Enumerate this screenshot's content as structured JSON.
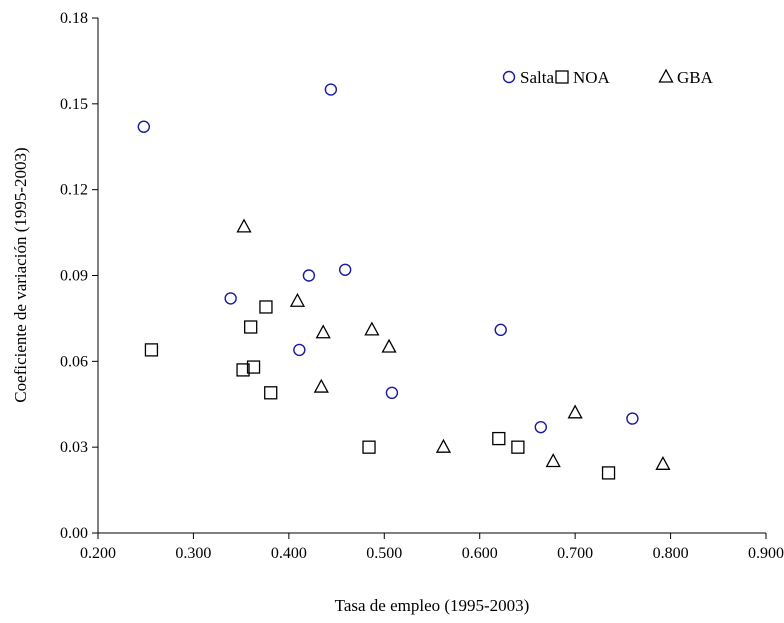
{
  "chart_data": {
    "type": "scatter",
    "title": "",
    "xlabel": "Tasa de empleo (1995-2003)",
    "ylabel": "Coeficiente de variación (1995-2003)",
    "xlim": [
      0.2,
      0.9
    ],
    "ylim": [
      0.0,
      0.18
    ],
    "x_ticks": [
      "0.200",
      "0.300",
      "0.400",
      "0.500",
      "0.600",
      "0.700",
      "0.800",
      "0.900"
    ],
    "y_ticks": [
      "0.00",
      "0.03",
      "0.06",
      "0.09",
      "0.12",
      "0.15",
      "0.18"
    ],
    "grid": false,
    "legend_position": "top-right",
    "series": [
      {
        "name": "Salta",
        "marker": "circle",
        "color": "#1a1aa0",
        "points": [
          [
            0.248,
            0.142
          ],
          [
            0.444,
            0.155
          ],
          [
            0.339,
            0.082
          ],
          [
            0.421,
            0.09
          ],
          [
            0.459,
            0.092
          ],
          [
            0.411,
            0.064
          ],
          [
            0.508,
            0.049
          ],
          [
            0.622,
            0.071
          ],
          [
            0.664,
            0.037
          ],
          [
            0.76,
            0.04
          ]
        ]
      },
      {
        "name": "NOA",
        "marker": "square",
        "color": "#000000",
        "points": [
          [
            0.256,
            0.064
          ],
          [
            0.352,
            0.057
          ],
          [
            0.36,
            0.072
          ],
          [
            0.363,
            0.058
          ],
          [
            0.376,
            0.079
          ],
          [
            0.381,
            0.049
          ],
          [
            0.484,
            0.03
          ],
          [
            0.62,
            0.033
          ],
          [
            0.64,
            0.03
          ],
          [
            0.735,
            0.021
          ]
        ]
      },
      {
        "name": "GBA",
        "marker": "triangle",
        "color": "#000000",
        "points": [
          [
            0.353,
            0.107
          ],
          [
            0.409,
            0.081
          ],
          [
            0.436,
            0.07
          ],
          [
            0.434,
            0.051
          ],
          [
            0.487,
            0.071
          ],
          [
            0.505,
            0.065
          ],
          [
            0.562,
            0.03
          ],
          [
            0.677,
            0.025
          ],
          [
            0.7,
            0.042
          ],
          [
            0.792,
            0.024
          ]
        ]
      }
    ]
  }
}
